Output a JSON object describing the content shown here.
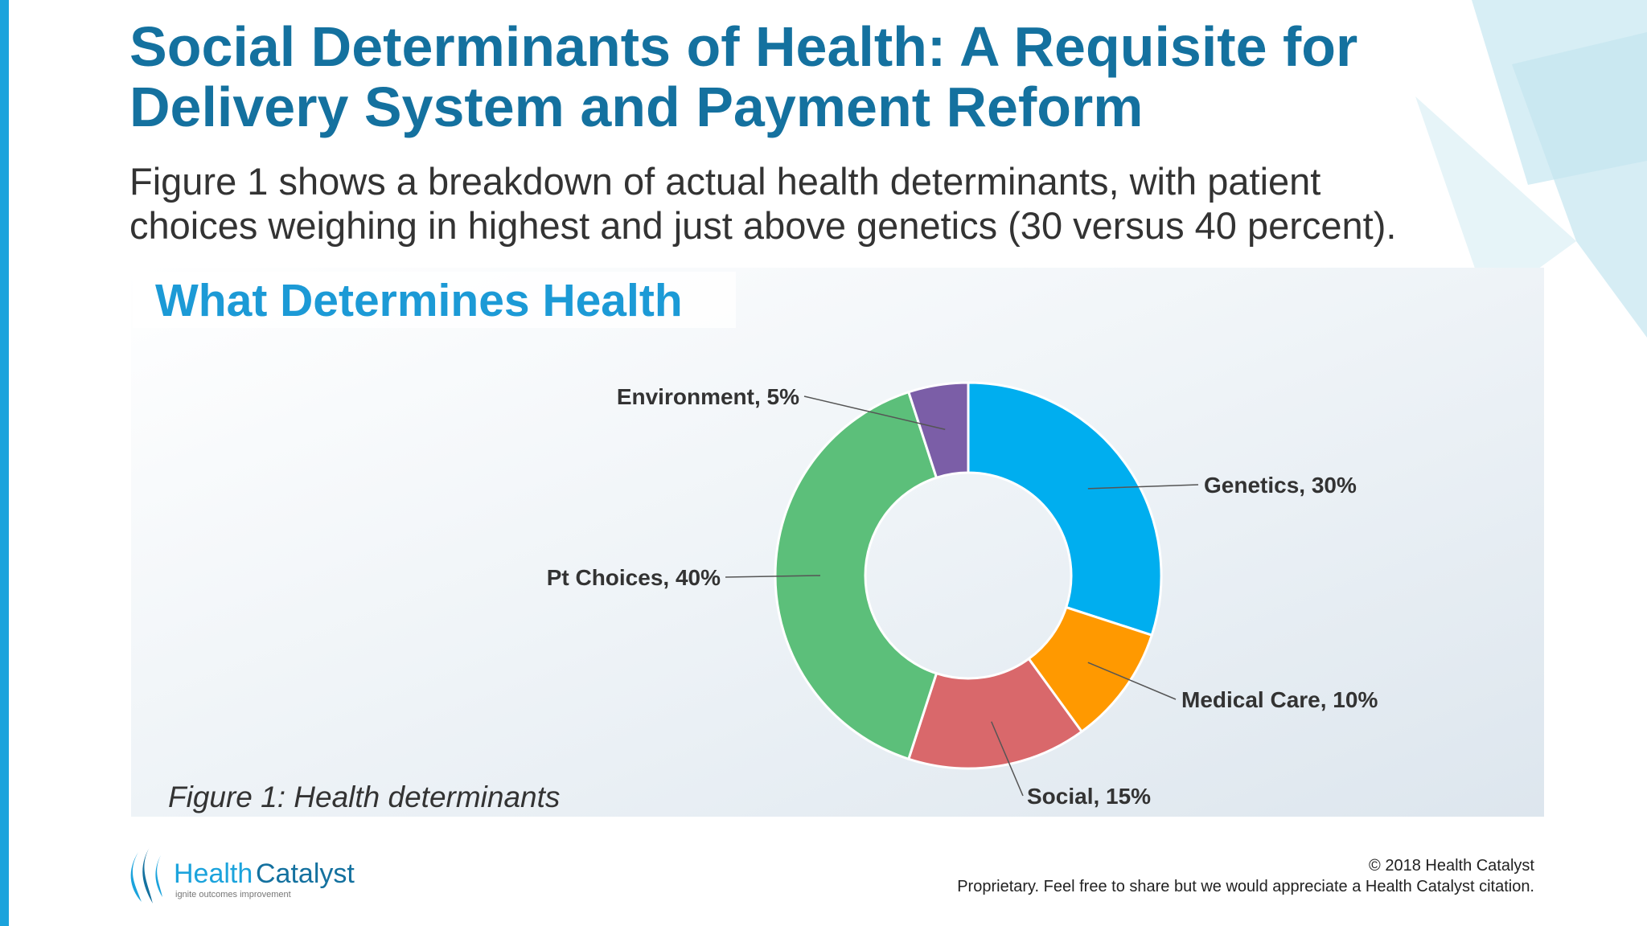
{
  "slide": {
    "title_lines": [
      "Social Determinants of Health: A Requisite for",
      "Delivery System and Payment Reform"
    ],
    "body_lines": [
      "Figure 1 shows a breakdown of actual health determinants, with patient",
      "choices weighing in highest and just above genetics (30 versus 40 percent)."
    ],
    "caption": "Figure 1: Health determinants",
    "logo": {
      "name_a": "Health",
      "name_b": "Catalyst",
      "tagline": "ignite outcomes improvement"
    },
    "footer": [
      "© 2018 Health Catalyst",
      "Proprietary. Feel free to share but we would appreciate a Health Catalyst citation."
    ]
  },
  "chart_data": {
    "type": "donut",
    "title": "What Determines Health",
    "values": [
      30,
      10,
      15,
      40,
      5
    ],
    "value_labels": [
      "Genetics, 30%",
      "Medical Care, 10%",
      "Social, 15%",
      "Pt Choices, 40%",
      "Environment, 5%"
    ],
    "colors": [
      "#00aeef",
      "#ff9900",
      "#d9686b",
      "#5cbf7a",
      "#7b5ea7"
    ]
  }
}
